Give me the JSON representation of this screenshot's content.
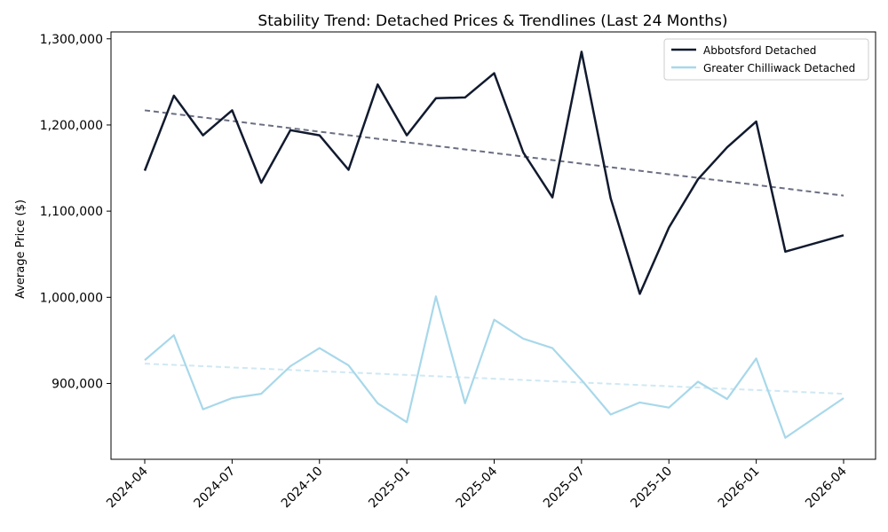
{
  "chart_data": {
    "type": "line",
    "title": "Stability Trend: Detached Prices & Trendlines (Last 24 Months)",
    "xlabel": "",
    "ylabel": "Average Price ($)",
    "x": [
      "2024-04",
      "2024-05",
      "2024-06",
      "2024-07",
      "2024-08",
      "2024-09",
      "2024-10",
      "2024-11",
      "2024-12",
      "2025-01",
      "2025-02",
      "2025-03",
      "2025-04",
      "2025-05",
      "2025-06",
      "2025-07",
      "2025-08",
      "2025-09",
      "2025-10",
      "2025-11",
      "2025-12",
      "2026-01",
      "2026-02",
      "2026-04"
    ],
    "xticks": [
      "2024-04",
      "2024-07",
      "2024-10",
      "2025-01",
      "2025-04",
      "2025-07",
      "2025-10",
      "2026-01",
      "2026-04"
    ],
    "ylim": [
      812000,
      1308000
    ],
    "yticks": [
      900000,
      1000000,
      1100000,
      1200000,
      1300000
    ],
    "ytick_labels": [
      "900,000",
      "1,000,000",
      "1,100,000",
      "1,200,000",
      "1,300,000"
    ],
    "grid": false,
    "legend_position": "top-right",
    "series": [
      {
        "name": "Abbotsford Detached",
        "color": "#111a2e",
        "values": [
          1147000,
          1234000,
          1188000,
          1217000,
          1133000,
          1194000,
          1188000,
          1148000,
          1247000,
          1188000,
          1231000,
          1232000,
          1260000,
          1168000,
          1116000,
          1285000,
          1115000,
          1004000,
          1081000,
          1137000,
          1174000,
          1204000,
          1053000,
          1072000
        ]
      },
      {
        "name": "Greater Chilliwack Detached",
        "color": "#a8d8ea",
        "values": [
          927000,
          956000,
          870000,
          883000,
          888000,
          920000,
          941000,
          921000,
          877000,
          855000,
          1001000,
          877000,
          974000,
          952000,
          941000,
          904000,
          864000,
          878000,
          872000,
          902000,
          882000,
          929000,
          837000,
          883000
        ]
      }
    ],
    "trendlines": [
      {
        "series": "Abbotsford Detached",
        "color": "#6b6f82",
        "start": 1217000,
        "end": 1118000
      },
      {
        "series": "Greater Chilliwack Detached",
        "color": "#cfe8f3",
        "start": 923000,
        "end": 888000
      }
    ]
  }
}
